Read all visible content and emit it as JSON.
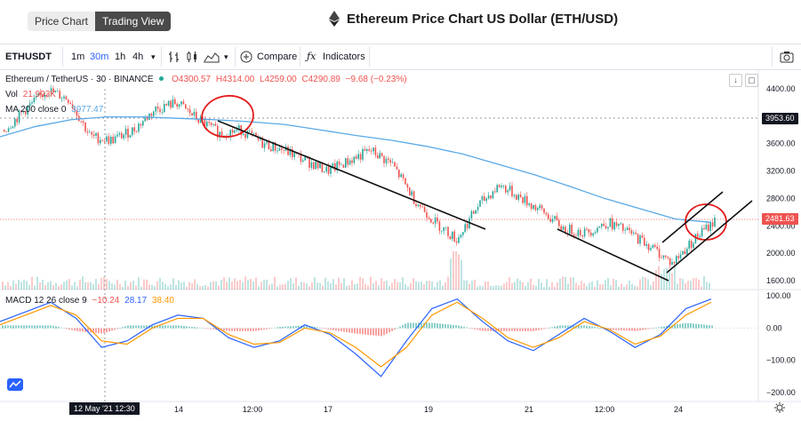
{
  "header": {
    "tab_price_chart": "Price Chart",
    "tab_trading_view": "Trading View",
    "title": "Ethereum Price Chart US Dollar (ETH/USD)"
  },
  "toolbar": {
    "symbol": "ETHUSDT",
    "intervals": [
      "1m",
      "30m",
      "1h",
      "4h"
    ],
    "active_interval": "30m",
    "compare_label": "Compare",
    "indicators_label": "Indicators"
  },
  "legend": {
    "pair": "Ethereum / TetherUS · 30 · BINANCE",
    "open": "O4300.57",
    "high": "H4314.00",
    "low": "L4259.00",
    "close": "C4290.89",
    "change": "−9.68 (−0.23%)",
    "vol_label": "Vol",
    "vol_value": "21.993K",
    "ma_label": "MA 200 close 0",
    "ma_value": "3977.47",
    "macd_label": "MACD 12 26 close 9",
    "macd_hist": "−10.24",
    "macd_line": "28.17",
    "macd_signal": "38.40"
  },
  "price_tags": {
    "crosshair": "3953.60",
    "last": "2481.63"
  },
  "time_tag": "12 May '21  12:30",
  "colors": {
    "up": "#26a69a",
    "down": "#ef5350",
    "ma": "#5aa9e6",
    "macd": "#2962ff",
    "signal": "#ff9800",
    "accent": "#2962ff"
  },
  "chart_data": {
    "type": "line",
    "price_axis": [
      4400,
      4000,
      3600,
      3200,
      2800,
      2400,
      2000,
      1600
    ],
    "price_axis_labels": [
      "4400.00",
      "4000.00",
      "3600.00",
      "3200.00",
      "2800.00",
      "2400.00",
      "2000.00",
      "1600.00"
    ],
    "macd_axis": [
      100,
      0,
      -100,
      -200
    ],
    "macd_axis_labels": [
      "100.00",
      "0.00",
      "−100.00",
      "−200.00"
    ],
    "time_labels": [
      "14",
      "12:00",
      "17",
      "19",
      "21",
      "12:00",
      "24"
    ],
    "price_points": [
      3800,
      4100,
      4380,
      4250,
      3700,
      3650,
      3800,
      4100,
      4200,
      3950,
      3750,
      3800,
      3600,
      3500,
      3350,
      3200,
      3350,
      3500,
      3300,
      2800,
      2450,
      2200,
      2700,
      3000,
      2800,
      2600,
      2350,
      2300,
      2450,
      2300,
      2100,
      1850,
      2200,
      2480
    ],
    "ma_points": [
      3700,
      3850,
      3950,
      3990,
      3990,
      3970,
      3950,
      3920,
      3880,
      3800,
      3720,
      3650,
      3560,
      3450,
      3300,
      3150,
      2980,
      2800,
      2650,
      2500,
      2450
    ],
    "macd_points": [
      20,
      50,
      80,
      30,
      -60,
      -40,
      10,
      40,
      30,
      -30,
      -60,
      -40,
      10,
      -20,
      -80,
      -150,
      -40,
      60,
      90,
      20,
      -40,
      -70,
      -20,
      30,
      -10,
      -60,
      -20,
      60,
      90
    ],
    "signal_points": [
      10,
      40,
      70,
      40,
      -40,
      -50,
      0,
      30,
      30,
      -20,
      -50,
      -45,
      0,
      -15,
      -60,
      -120,
      -60,
      40,
      80,
      30,
      -30,
      -60,
      -30,
      20,
      -5,
      -50,
      -25,
      40,
      80
    ]
  }
}
